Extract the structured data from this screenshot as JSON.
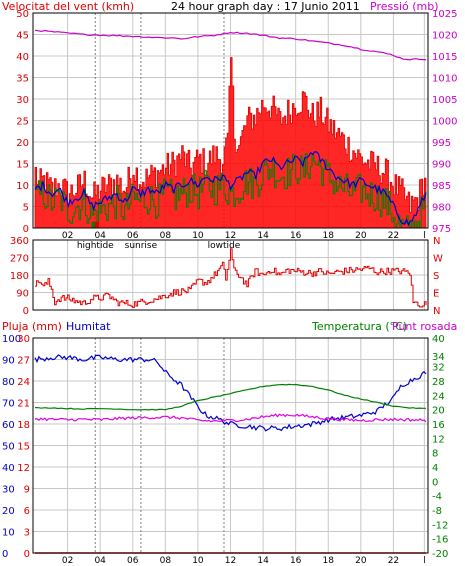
{
  "colors": {
    "wind": "#e00000",
    "gust_fill": "#ff0000",
    "wind_avg": "#0000cc",
    "wind_alt": "#008000",
    "pressure": "#cc00cc",
    "direction": "#e00000",
    "humidity": "#0000cc",
    "temperature": "#008000",
    "dew_point": "#e000e0",
    "rain": "#e00000",
    "grid": "#c8c8c8",
    "frame": "#000000",
    "tide_marker": "#808080"
  },
  "header": {
    "left_title": "Velocitat del vent (kmh)",
    "center_title": "24 hour graph day : 17 Junio 2011",
    "right_title": "Pressió (mb)"
  },
  "bottom_header": {
    "rain_label": "Pluja (mm)",
    "humidity_label": "Humitat",
    "temp_label": "Temperatura (°C)",
    "dew_label": "Punt rosada"
  },
  "x_axis": {
    "hour_labels": [
      "02",
      "04",
      "06",
      "08",
      "10",
      "12",
      "14",
      "16",
      "18",
      "20",
      "22",
      "l"
    ],
    "hour_positions": [
      2,
      4,
      6,
      8,
      10,
      12,
      14,
      16,
      18,
      20,
      22,
      23.9
    ],
    "events": [
      {
        "label": "hightide",
        "hour": 3.7
      },
      {
        "label": "sunrise",
        "hour": 6.5
      },
      {
        "label": "lowtide",
        "hour": 11.6
      }
    ]
  },
  "chart_data": [
    {
      "type": "line",
      "name": "wind_pressure",
      "x_range_hours": [
        0,
        24
      ],
      "left_axis": {
        "ticks": [
          "0",
          "5",
          "10",
          "15",
          "20",
          "25",
          "30",
          "35",
          "40",
          "45",
          "50"
        ],
        "min": 0,
        "max": 50
      },
      "right_axis": {
        "ticks": [
          "975",
          "980",
          "985",
          "990",
          "995",
          "1000",
          "1005",
          "1010",
          "1015",
          "1020",
          "1025"
        ],
        "min": 975,
        "max": 1025
      },
      "gust_anchors": [
        [
          0,
          13
        ],
        [
          0.2,
          10
        ],
        [
          0.5,
          11
        ],
        [
          1,
          9
        ],
        [
          1.5,
          10
        ],
        [
          2,
          8
        ],
        [
          2.5,
          9
        ],
        [
          3,
          11
        ],
        [
          3.5,
          7
        ],
        [
          4,
          9
        ],
        [
          4.5,
          10
        ],
        [
          5,
          11
        ],
        [
          5.5,
          9
        ],
        [
          6,
          14
        ],
        [
          6.5,
          11
        ],
        [
          7,
          12
        ],
        [
          7.5,
          13
        ],
        [
          8,
          14
        ],
        [
          8.5,
          15
        ],
        [
          9,
          17
        ],
        [
          9.5,
          14
        ],
        [
          10,
          16
        ],
        [
          10.5,
          15
        ],
        [
          11,
          17
        ],
        [
          11.5,
          16
        ],
        [
          11.8,
          20
        ],
        [
          12,
          39
        ],
        [
          12.2,
          22
        ],
        [
          12.5,
          19
        ],
        [
          13,
          25
        ],
        [
          13.5,
          26
        ],
        [
          14,
          29
        ],
        [
          14.5,
          28
        ],
        [
          15,
          25
        ],
        [
          15.5,
          27
        ],
        [
          16,
          29
        ],
        [
          16.5,
          30
        ],
        [
          17,
          26
        ],
        [
          17.5,
          27
        ],
        [
          18,
          24
        ],
        [
          18.5,
          22
        ],
        [
          19,
          20
        ],
        [
          19.5,
          18
        ],
        [
          20,
          16
        ],
        [
          20.5,
          15
        ],
        [
          21,
          14
        ],
        [
          21.5,
          13
        ],
        [
          22,
          10
        ],
        [
          22.5,
          8
        ],
        [
          23,
          5
        ],
        [
          23.5,
          7
        ],
        [
          23.8,
          11
        ],
        [
          24,
          10
        ]
      ],
      "avg_anchors": [
        [
          0,
          9
        ],
        [
          0.5,
          10
        ],
        [
          1,
          8
        ],
        [
          1.5,
          9
        ],
        [
          2,
          6
        ],
        [
          2.5,
          7
        ],
        [
          3,
          8
        ],
        [
          3.5,
          5
        ],
        [
          4,
          6
        ],
        [
          4.5,
          7
        ],
        [
          5,
          8
        ],
        [
          5.5,
          6
        ],
        [
          6,
          9
        ],
        [
          6.5,
          8
        ],
        [
          7,
          9
        ],
        [
          7.5,
          8
        ],
        [
          8,
          10
        ],
        [
          8.5,
          9
        ],
        [
          9,
          10
        ],
        [
          9.5,
          11
        ],
        [
          10,
          10
        ],
        [
          10.5,
          12
        ],
        [
          11,
          11
        ],
        [
          11.5,
          12
        ],
        [
          12,
          10
        ],
        [
          12.5,
          11
        ],
        [
          13,
          13
        ],
        [
          13.5,
          12
        ],
        [
          14,
          15
        ],
        [
          14.5,
          16
        ],
        [
          15,
          14
        ],
        [
          15.5,
          15
        ],
        [
          16,
          16
        ],
        [
          16.5,
          15
        ],
        [
          17,
          18
        ],
        [
          17.5,
          16
        ],
        [
          18,
          14
        ],
        [
          18.5,
          12
        ],
        [
          19,
          11
        ],
        [
          19.5,
          10
        ],
        [
          20,
          11
        ],
        [
          20.5,
          10
        ],
        [
          21,
          9
        ],
        [
          21.5,
          8
        ],
        [
          22,
          5
        ],
        [
          22.5,
          2
        ],
        [
          23,
          1
        ],
        [
          23.5,
          4
        ],
        [
          24,
          8
        ]
      ],
      "pressure_anchors": [
        [
          0,
          1021
        ],
        [
          3,
          1020
        ],
        [
          6,
          1019.6
        ],
        [
          7.5,
          1019.3
        ],
        [
          8.5,
          1019.2
        ],
        [
          9,
          1019
        ],
        [
          10,
          1019.5
        ],
        [
          11,
          1019.8
        ],
        [
          12,
          1020.5
        ],
        [
          13,
          1020.3
        ],
        [
          14,
          1019.8
        ],
        [
          15,
          1019.2
        ],
        [
          16,
          1019
        ],
        [
          17,
          1018.5
        ],
        [
          18,
          1018
        ],
        [
          19,
          1017.5
        ],
        [
          20,
          1016.6
        ],
        [
          21,
          1016
        ],
        [
          22,
          1015.2
        ],
        [
          22.5,
          1014.4
        ],
        [
          23,
          1014.2
        ],
        [
          24,
          1014.3
        ]
      ],
      "bottom_markers": [
        {
          "hour": 3.6,
          "value": 1,
          "color": "#008000"
        },
        {
          "hour": 3.8,
          "value": 1,
          "color": "#e00000"
        }
      ]
    },
    {
      "type": "line",
      "name": "wind_direction",
      "x_range_hours": [
        0,
        24
      ],
      "left_axis": {
        "ticks": [
          "0",
          "90",
          "180",
          "270",
          "360"
        ],
        "min": 0,
        "max": 360
      },
      "right_axis_labels": [
        "N",
        "W",
        "S",
        "E",
        "N"
      ],
      "anchors": [
        [
          0,
          130
        ],
        [
          0.3,
          150
        ],
        [
          0.5,
          120
        ],
        [
          0.8,
          145
        ],
        [
          1,
          105
        ],
        [
          1.2,
          40
        ],
        [
          1.5,
          60
        ],
        [
          2,
          60
        ],
        [
          2.5,
          45
        ],
        [
          3,
          35
        ],
        [
          3.5,
          60
        ],
        [
          4,
          62
        ],
        [
          4.5,
          75
        ],
        [
          5,
          40
        ],
        [
          5.5,
          35
        ],
        [
          6,
          30
        ],
        [
          6.5,
          40
        ],
        [
          7,
          50
        ],
        [
          7.5,
          60
        ],
        [
          8,
          75
        ],
        [
          8.5,
          90
        ],
        [
          9,
          95
        ],
        [
          9.5,
          100
        ],
        [
          10,
          150
        ],
        [
          10.5,
          140
        ],
        [
          11,
          180
        ],
        [
          11.5,
          230
        ],
        [
          11.7,
          160
        ],
        [
          12,
          310
        ],
        [
          12.2,
          200
        ],
        [
          12.5,
          180
        ],
        [
          13,
          130
        ],
        [
          13.5,
          200
        ],
        [
          14,
          180
        ],
        [
          14.5,
          210
        ],
        [
          15,
          180
        ],
        [
          15.5,
          205
        ],
        [
          16,
          200
        ],
        [
          16.5,
          195
        ],
        [
          17,
          190
        ],
        [
          17.5,
          200
        ],
        [
          18,
          185
        ],
        [
          18.5,
          195
        ],
        [
          19,
          200
        ],
        [
          19.5,
          205
        ],
        [
          20,
          210
        ],
        [
          20.5,
          215
        ],
        [
          21,
          195
        ],
        [
          21.5,
          200
        ],
        [
          22,
          200
        ],
        [
          22.5,
          200
        ],
        [
          23,
          190
        ],
        [
          23.2,
          40
        ],
        [
          23.5,
          30
        ],
        [
          24,
          30
        ]
      ]
    },
    {
      "type": "line",
      "name": "temperature_humidity",
      "x_range_hours": [
        0,
        24
      ],
      "left_axis_rain": {
        "ticks": [
          "0",
          "3",
          "6",
          "9",
          "12",
          "15",
          "18",
          "21",
          "24",
          "27",
          "30"
        ],
        "min": 0,
        "max": 30
      },
      "left_axis_humidity": {
        "ticks": [
          "0",
          "10",
          "20",
          "30",
          "40",
          "50",
          "60",
          "70",
          "80",
          "90",
          "100"
        ],
        "min": 0,
        "max": 100
      },
      "right_axis_temp": {
        "ticks": [
          "-20",
          "-16",
          "-12",
          "-8",
          "-4",
          "0",
          "4",
          "8",
          "12",
          "16",
          "20",
          "24",
          "28",
          "32",
          "34",
          "40"
        ],
        "min": -20,
        "max": 40
      },
      "humidity_anchors": [
        [
          0,
          90
        ],
        [
          1,
          91
        ],
        [
          2,
          91
        ],
        [
          3,
          90
        ],
        [
          4,
          91
        ],
        [
          5,
          90
        ],
        [
          6,
          90
        ],
        [
          7,
          90
        ],
        [
          7.5,
          89
        ],
        [
          8,
          84
        ],
        [
          9,
          78
        ],
        [
          10,
          68
        ],
        [
          10.5,
          64
        ],
        [
          11,
          63
        ],
        [
          12,
          60
        ],
        [
          13,
          59
        ],
        [
          14,
          58
        ],
        [
          15,
          58
        ],
        [
          16,
          59
        ],
        [
          17,
          60
        ],
        [
          18,
          62
        ],
        [
          19,
          63
        ],
        [
          20,
          64
        ],
        [
          21,
          66
        ],
        [
          22,
          72
        ],
        [
          22.5,
          78
        ],
        [
          23,
          80
        ],
        [
          23.5,
          82
        ],
        [
          24,
          84
        ]
      ],
      "temperature_anchors": [
        [
          0,
          20.5
        ],
        [
          1,
          20.5
        ],
        [
          2,
          20.3
        ],
        [
          3,
          20.2
        ],
        [
          4,
          20.3
        ],
        [
          5,
          20.2
        ],
        [
          6,
          20
        ],
        [
          7,
          20
        ],
        [
          8,
          20
        ],
        [
          9,
          21
        ],
        [
          10,
          22.5
        ],
        [
          11,
          23.5
        ],
        [
          12,
          24.5
        ],
        [
          13,
          25.5
        ],
        [
          14,
          26.5
        ],
        [
          15,
          27
        ],
        [
          16,
          27
        ],
        [
          17,
          26.5
        ],
        [
          18,
          25.5
        ],
        [
          19,
          24
        ],
        [
          20,
          23
        ],
        [
          21,
          22
        ],
        [
          22,
          21
        ],
        [
          23,
          20.5
        ],
        [
          24,
          20.3
        ]
      ],
      "dew_anchors": [
        [
          0,
          17.5
        ],
        [
          1,
          17.3
        ],
        [
          2,
          17.2
        ],
        [
          3,
          17.3
        ],
        [
          4,
          17.2
        ],
        [
          5,
          17.5
        ],
        [
          6,
          17.7
        ],
        [
          7,
          17.8
        ],
        [
          8,
          17.9
        ],
        [
          9,
          17.7
        ],
        [
          10,
          17
        ],
        [
          11,
          16.8
        ],
        [
          12,
          17
        ],
        [
          13,
          17.3
        ],
        [
          14,
          18
        ],
        [
          15,
          18.5
        ],
        [
          16,
          18.5
        ],
        [
          17,
          18
        ],
        [
          18,
          17.5
        ],
        [
          19,
          17.2
        ],
        [
          20,
          17
        ],
        [
          21,
          17.2
        ],
        [
          22,
          17.3
        ],
        [
          23,
          17.2
        ],
        [
          24,
          17
        ]
      ],
      "rain_values": [
        [
          0,
          0
        ],
        [
          24,
          0
        ]
      ]
    }
  ]
}
